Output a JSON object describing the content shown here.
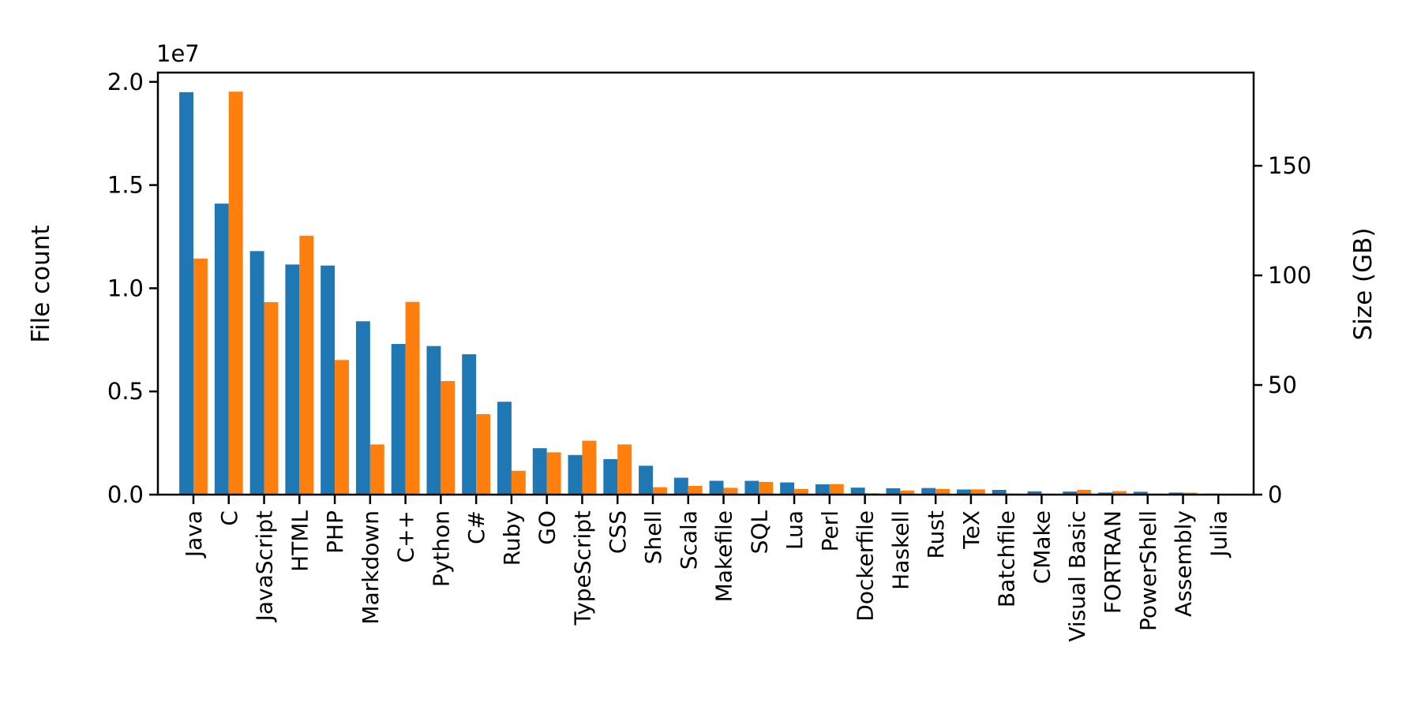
{
  "chart_data": {
    "type": "bar",
    "title": "",
    "categories": [
      "Java",
      "C",
      "JavaScript",
      "HTML",
      "PHP",
      "Markdown",
      "C++",
      "Python",
      "C#",
      "Ruby",
      "GO",
      "TypeScript",
      "CSS",
      "Shell",
      "Scala",
      "Makefile",
      "SQL",
      "Lua",
      "Perl",
      "Dockerfile",
      "Haskell",
      "Rust",
      "TeX",
      "Batchfile",
      "CMake",
      "Visual Basic",
      "FORTRAN",
      "PowerShell",
      "Assembly",
      "Julia"
    ],
    "series": [
      {
        "name": "File count",
        "axis": "left",
        "color": "#1f77b4",
        "values": [
          19500000,
          14100000,
          11800000,
          11150000,
          11100000,
          8400000,
          7300000,
          7200000,
          6800000,
          4500000,
          2250000,
          1920000,
          1720000,
          1400000,
          820000,
          670000,
          670000,
          590000,
          500000,
          340000,
          310000,
          320000,
          250000,
          230000,
          160000,
          150000,
          100000,
          140000,
          100000,
          50000
        ]
      },
      {
        "name": "Size (GB)",
        "axis": "right",
        "color": "#ff7f0e",
        "values": [
          107.7,
          183.8,
          87.8,
          118.1,
          61.4,
          22.9,
          87.9,
          51.8,
          36.7,
          10.9,
          19.3,
          24.6,
          22.9,
          3.4,
          4.0,
          3.1,
          5.8,
          2.6,
          4.8,
          0.6,
          1.9,
          2.6,
          2.4,
          0.5,
          0.4,
          2.2,
          1.6,
          0.5,
          0.9,
          0.3
        ]
      }
    ],
    "left_axis": {
      "label": "File count",
      "color": "#1f77b4",
      "offset_text": "1e7",
      "ticks": [
        0,
        5000000,
        10000000,
        15000000,
        20000000
      ],
      "tick_labels": [
        "0.0",
        "0.5",
        "1.0",
        "1.5",
        "2.0"
      ],
      "max": 20450000
    },
    "right_axis": {
      "label": "Size (GB)",
      "color": "#ff7f0e",
      "ticks": [
        0,
        50,
        100,
        150
      ],
      "tick_labels": [
        "0",
        "50",
        "100",
        "150"
      ],
      "max": 192.5
    },
    "grid": false,
    "legend": "none"
  }
}
